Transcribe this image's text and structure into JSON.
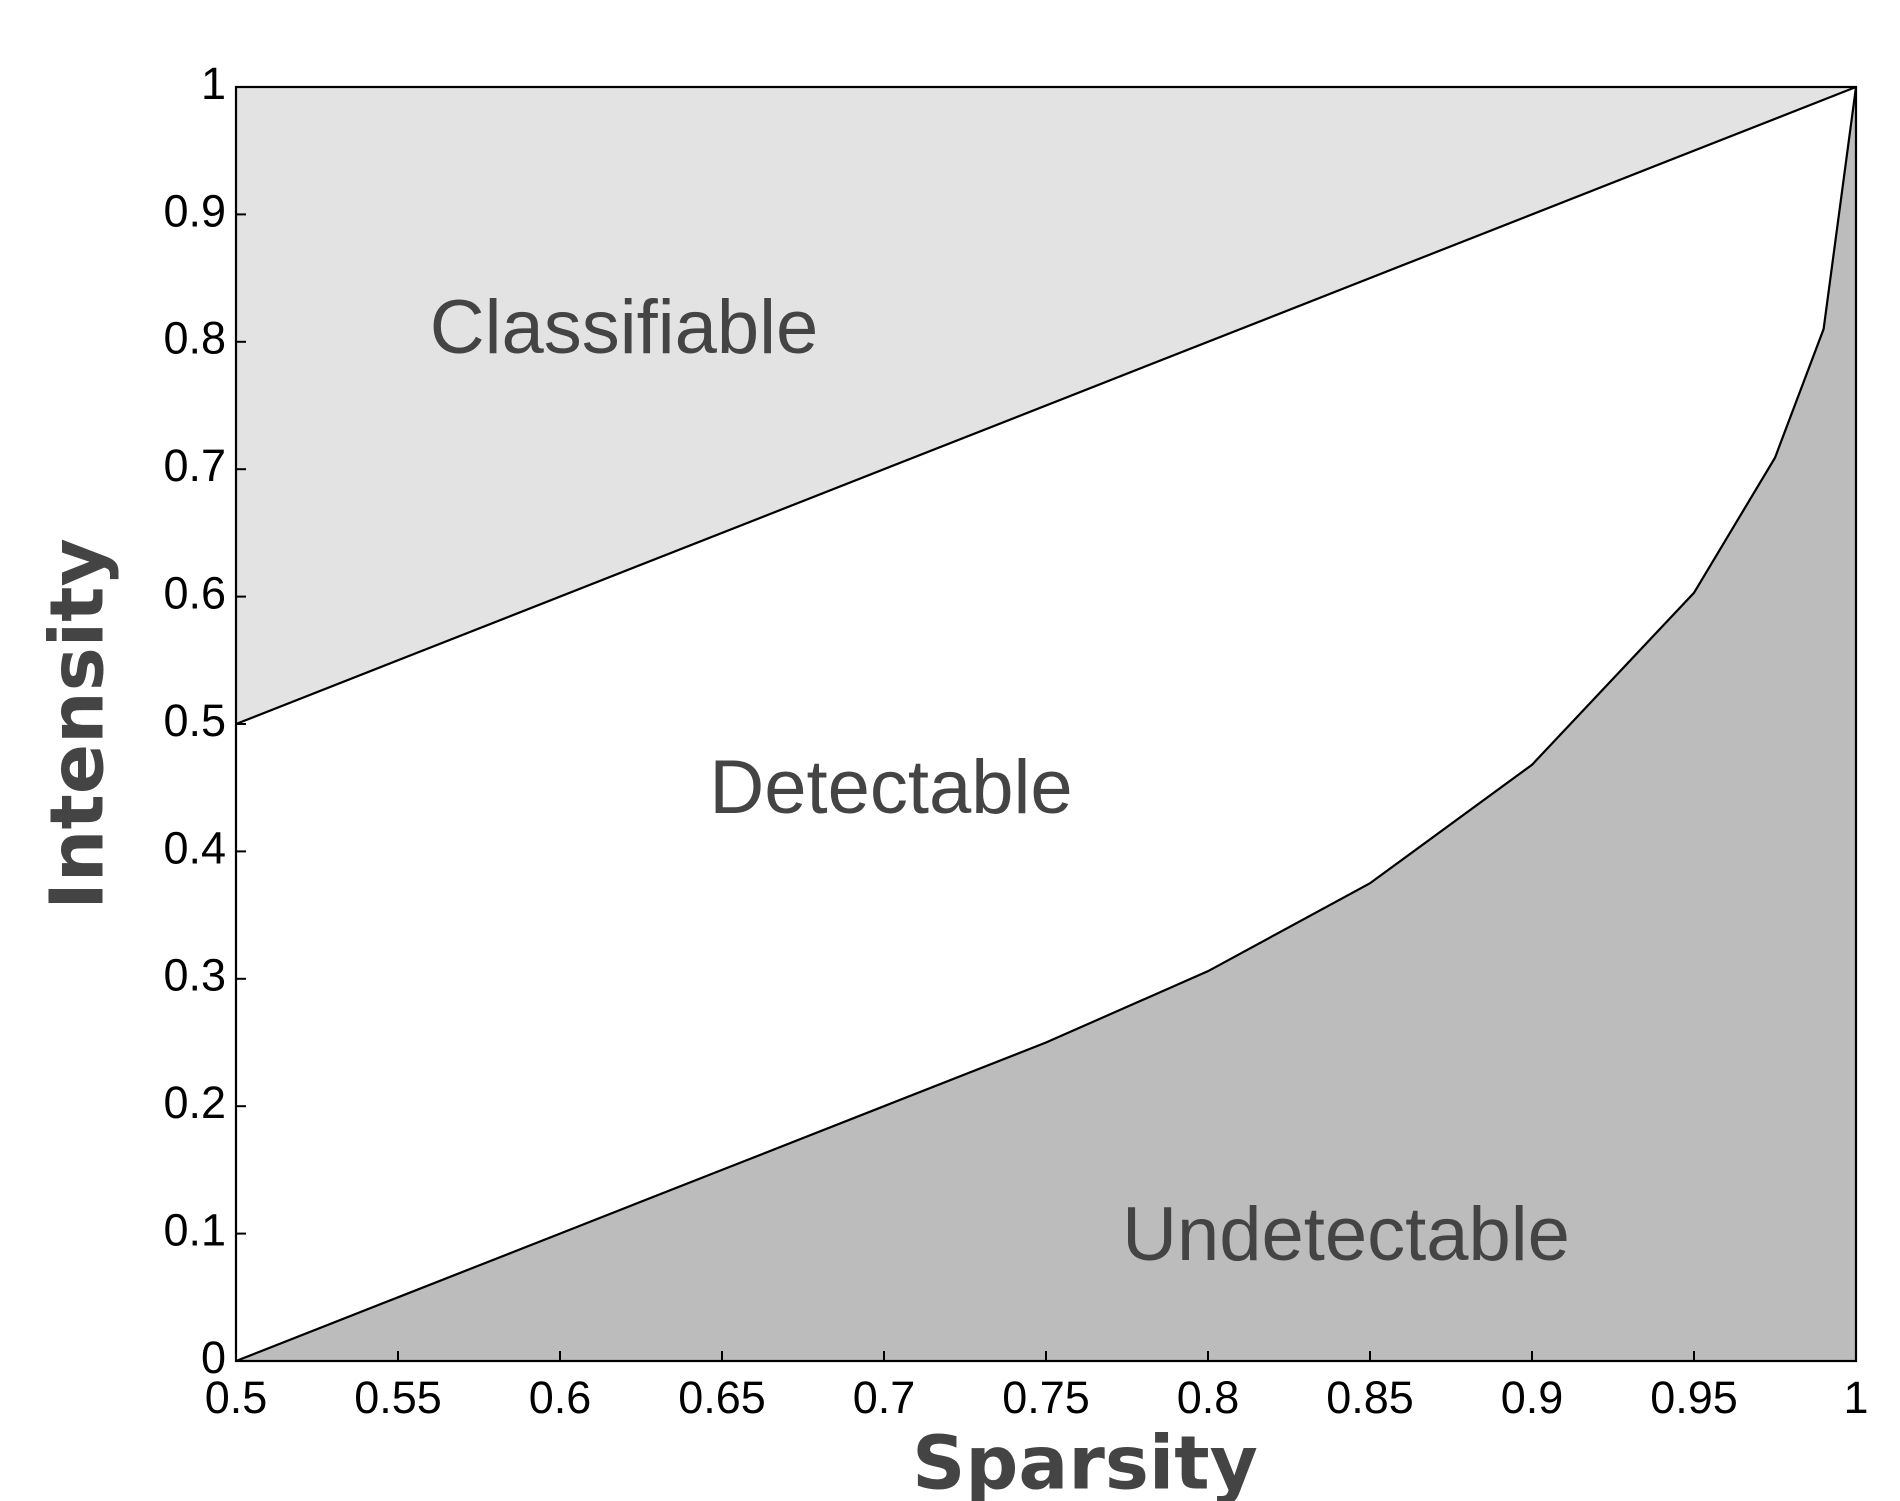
{
  "chart_data": {
    "type": "line",
    "x_label": "Sparsity",
    "y_label": "Intensity",
    "series": [
      {
        "x": [
          0.5,
          1
        ],
        "values": [
          0.5,
          1
        ],
        "color": "#000000",
        "fill": "#e3e3e3",
        "fill_side": "above"
      },
      {
        "x": [
          0.5,
          0.55,
          0.6,
          0.65,
          0.7,
          0.75,
          0.8,
          0.85,
          0.9,
          0.95,
          0.975,
          0.99,
          1
        ],
        "values": [
          0,
          0.05,
          0.1,
          0.15,
          0.2,
          0.25,
          0.306,
          0.375,
          0.468,
          0.603,
          0.709,
          0.81,
          1
        ],
        "color": "#000000",
        "fill": "#bcbcbc",
        "fill_side": "below"
      }
    ],
    "annotations": [
      "Classifiable",
      "Detectable",
      "Undetectable"
    ],
    "xlim": [
      0.5,
      1
    ],
    "ylim": [
      0,
      1
    ],
    "xticks": [
      0.5,
      0.55,
      0.6,
      0.65,
      0.7,
      0.75,
      0.8,
      0.85,
      0.9,
      0.95,
      1
    ],
    "yticks": [
      0,
      0.1,
      0.2,
      0.3,
      0.4,
      0.5,
      0.6,
      0.7,
      0.8,
      0.9,
      1
    ],
    "grid": false
  }
}
